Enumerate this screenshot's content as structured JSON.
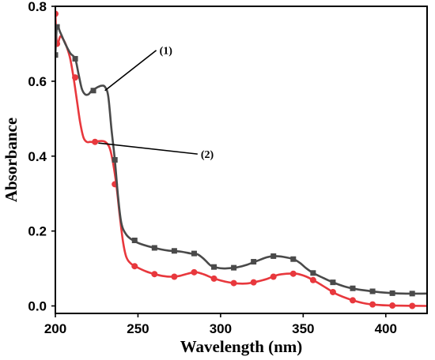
{
  "chart_data": {
    "type": "line",
    "xlabel": "Wavelength (nm)",
    "ylabel": "Absorbance",
    "xlim": [
      200,
      425
    ],
    "ylim": [
      -0.02,
      0.8
    ],
    "x_ticks": [
      200,
      250,
      300,
      350,
      400
    ],
    "y_ticks": [
      0.0,
      0.2,
      0.4,
      0.6,
      0.8
    ],
    "x_tick_labels": [
      "200",
      "250",
      "300",
      "350",
      "400"
    ],
    "y_tick_labels": [
      "0.0",
      "0.2",
      "0.4",
      "0.6",
      "0.8"
    ],
    "grid": false,
    "legend": "none",
    "series": [
      {
        "label": "(1)",
        "color": "#4a4a4a",
        "marker": "square",
        "curve": [
          [
            200,
            0.67
          ],
          [
            201,
            0.745
          ],
          [
            203,
            0.73
          ],
          [
            206,
            0.7
          ],
          [
            209,
            0.675
          ],
          [
            212,
            0.66
          ],
          [
            214,
            0.62
          ],
          [
            216,
            0.58
          ],
          [
            218,
            0.565
          ],
          [
            220,
            0.565
          ],
          [
            222,
            0.575
          ],
          [
            224,
            0.58
          ],
          [
            226,
            0.585
          ],
          [
            228,
            0.588
          ],
          [
            230,
            0.585
          ],
          [
            232,
            0.56
          ],
          [
            234,
            0.47
          ],
          [
            236,
            0.39
          ],
          [
            238,
            0.29
          ],
          [
            240,
            0.22
          ],
          [
            243,
            0.19
          ],
          [
            247,
            0.175
          ],
          [
            252,
            0.165
          ],
          [
            260,
            0.155
          ],
          [
            268,
            0.148
          ],
          [
            276,
            0.145
          ],
          [
            282,
            0.14
          ],
          [
            286,
            0.138
          ],
          [
            290,
            0.125
          ],
          [
            294,
            0.108
          ],
          [
            298,
            0.102
          ],
          [
            302,
            0.1
          ],
          [
            306,
            0.101
          ],
          [
            310,
            0.103
          ],
          [
            316,
            0.11
          ],
          [
            322,
            0.12
          ],
          [
            328,
            0.13
          ],
          [
            333,
            0.133
          ],
          [
            338,
            0.131
          ],
          [
            344,
            0.125
          ],
          [
            348,
            0.115
          ],
          [
            352,
            0.1
          ],
          [
            356,
            0.088
          ],
          [
            362,
            0.075
          ],
          [
            368,
            0.063
          ],
          [
            375,
            0.052
          ],
          [
            382,
            0.045
          ],
          [
            390,
            0.04
          ],
          [
            398,
            0.036
          ],
          [
            410,
            0.033
          ],
          [
            425,
            0.033
          ]
        ],
        "markers": [
          [
            200,
            0.67
          ],
          [
            201,
            0.745
          ],
          [
            212,
            0.66
          ],
          [
            223,
            0.575
          ],
          [
            236,
            0.39
          ],
          [
            248,
            0.175
          ],
          [
            260,
            0.155
          ],
          [
            272,
            0.147
          ],
          [
            284,
            0.14
          ],
          [
            296,
            0.104
          ],
          [
            308,
            0.102
          ],
          [
            320,
            0.118
          ],
          [
            332,
            0.133
          ],
          [
            344,
            0.125
          ],
          [
            356,
            0.088
          ],
          [
            368,
            0.063
          ],
          [
            380,
            0.047
          ],
          [
            392,
            0.039
          ],
          [
            404,
            0.034
          ],
          [
            416,
            0.033
          ]
        ]
      },
      {
        "label": "(2)",
        "color": "#e8383d",
        "marker": "circle",
        "curve": [
          [
            200,
            0.78
          ],
          [
            201,
            0.7
          ],
          [
            203,
            0.72
          ],
          [
            205,
            0.71
          ],
          [
            207,
            0.69
          ],
          [
            209,
            0.66
          ],
          [
            211,
            0.61
          ],
          [
            213,
            0.55
          ],
          [
            215,
            0.49
          ],
          [
            217,
            0.45
          ],
          [
            219,
            0.438
          ],
          [
            221,
            0.438
          ],
          [
            223,
            0.438
          ],
          [
            226,
            0.44
          ],
          [
            229,
            0.44
          ],
          [
            231,
            0.435
          ],
          [
            233,
            0.42
          ],
          [
            235,
            0.38
          ],
          [
            237,
            0.32
          ],
          [
            239,
            0.24
          ],
          [
            241,
            0.17
          ],
          [
            243,
            0.13
          ],
          [
            246,
            0.112
          ],
          [
            250,
            0.102
          ],
          [
            255,
            0.092
          ],
          [
            260,
            0.085
          ],
          [
            265,
            0.08
          ],
          [
            270,
            0.078
          ],
          [
            275,
            0.08
          ],
          [
            280,
            0.086
          ],
          [
            285,
            0.09
          ],
          [
            290,
            0.084
          ],
          [
            295,
            0.075
          ],
          [
            300,
            0.068
          ],
          [
            305,
            0.063
          ],
          [
            310,
            0.06
          ],
          [
            316,
            0.06
          ],
          [
            322,
            0.065
          ],
          [
            328,
            0.072
          ],
          [
            334,
            0.082
          ],
          [
            340,
            0.086
          ],
          [
            346,
            0.086
          ],
          [
            352,
            0.078
          ],
          [
            358,
            0.064
          ],
          [
            364,
            0.048
          ],
          [
            370,
            0.032
          ],
          [
            378,
            0.018
          ],
          [
            386,
            0.008
          ],
          [
            394,
            0.003
          ],
          [
            404,
            0.001
          ],
          [
            425,
            0.0
          ]
        ],
        "markers": [
          [
            200,
            0.78
          ],
          [
            201,
            0.7
          ],
          [
            212,
            0.61
          ],
          [
            224,
            0.438
          ],
          [
            236,
            0.325
          ],
          [
            248,
            0.106
          ],
          [
            260,
            0.085
          ],
          [
            272,
            0.078
          ],
          [
            284,
            0.09
          ],
          [
            296,
            0.073
          ],
          [
            308,
            0.061
          ],
          [
            320,
            0.063
          ],
          [
            332,
            0.078
          ],
          [
            344,
            0.086
          ],
          [
            356,
            0.069
          ],
          [
            368,
            0.037
          ],
          [
            380,
            0.015
          ],
          [
            392,
            0.004
          ],
          [
            404,
            0.001
          ],
          [
            416,
            0.0
          ]
        ]
      }
    ],
    "annotations": [
      {
        "text": "(1)",
        "point_x": 230,
        "point_y": 0.575,
        "text_x": 263,
        "text_y": 0.672
      },
      {
        "text": "(2)",
        "point_x": 226,
        "point_y": 0.435,
        "text_x": 288,
        "text_y": 0.395
      }
    ]
  }
}
